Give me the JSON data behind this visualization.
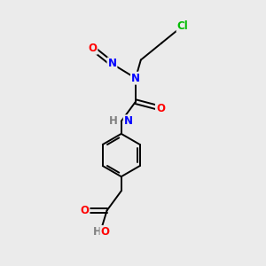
{
  "background_color": "#ebebeb",
  "bond_color": "#000000",
  "atom_colors": {
    "O": "#ff0000",
    "N": "#0000ff",
    "Cl": "#00bb00",
    "C": "#000000",
    "H": "#808080"
  },
  "figsize": [
    3.0,
    3.0
  ],
  "dpi": 100,
  "bond_lw": 1.4,
  "font_size": 8.5
}
